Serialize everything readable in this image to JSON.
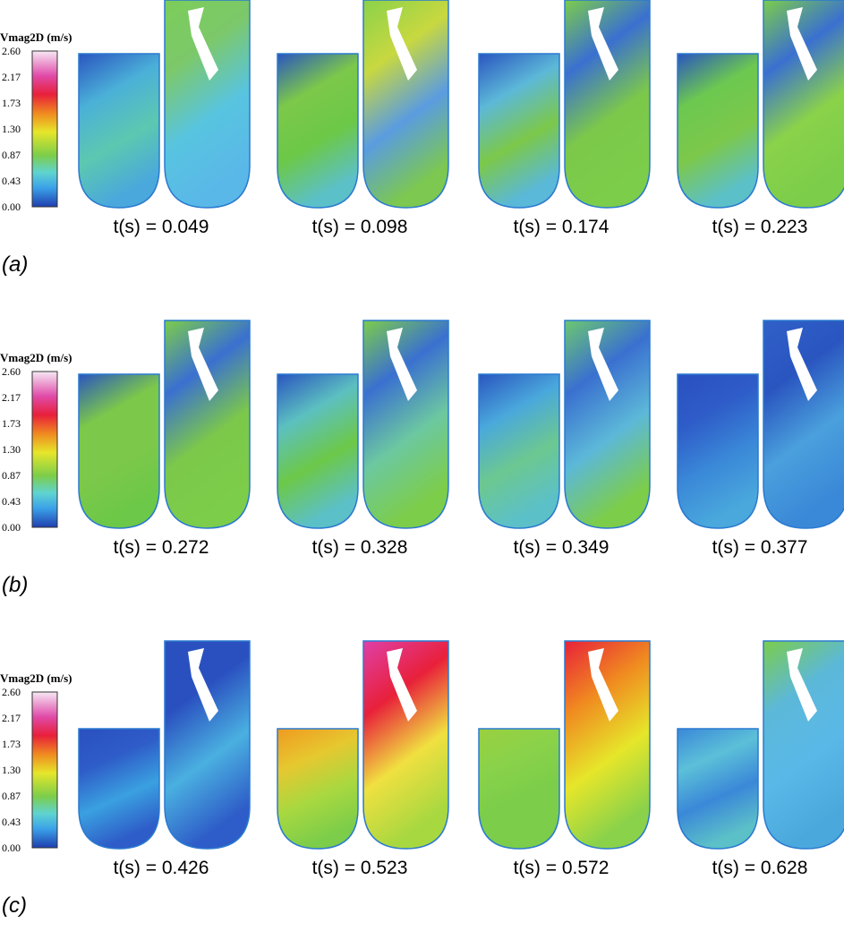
{
  "figure": {
    "rows": [
      {
        "label": "(a)",
        "colorbar": {
          "title": "Vmag2D (m/s)",
          "ticks": [
            "2.60",
            "2.17",
            "1.73",
            "1.30",
            "0.87",
            "0.43",
            "0.00"
          ]
        },
        "frames": [
          "t(s) = 0.049",
          "t(s) = 0.098",
          "t(s) = 0.174",
          "t(s) = 0.223"
        ]
      },
      {
        "label": "(b)",
        "colorbar": {
          "title": "Vmag2D (m/s)",
          "ticks": [
            "2.60",
            "2.17",
            "1.73",
            "1.30",
            "0.87",
            "0.43",
            "0.00"
          ]
        },
        "frames": [
          "t(s) = 0.272",
          "t(s) = 0.328",
          "t(s) = 0.349",
          "t(s) = 0.377"
        ]
      },
      {
        "label": "(c)",
        "colorbar": {
          "title": "Vmag2D (m/s)",
          "ticks": [
            "2.60",
            "2.17",
            "1.73",
            "1.30",
            "0.87",
            "0.43",
            "0.00"
          ]
        },
        "frames": [
          "t(s) = 0.426",
          "t(s) = 0.523",
          "t(s) = 0.572",
          "t(s) = 0.628"
        ]
      }
    ]
  }
}
